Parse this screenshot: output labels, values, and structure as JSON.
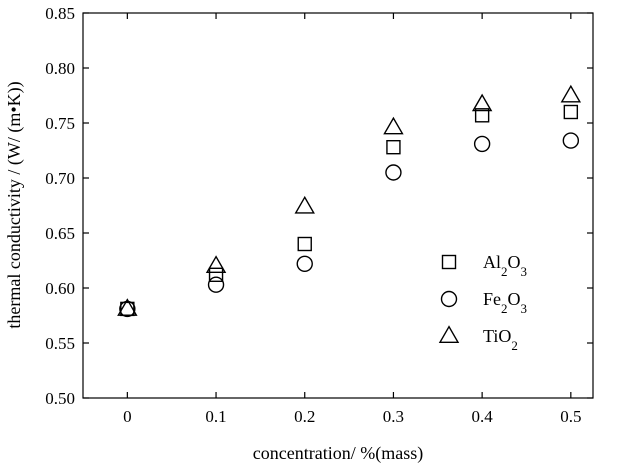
{
  "chart_data": {
    "type": "scatter",
    "title": "",
    "xlabel": "concentration/ %(mass)",
    "ylabel": "thermal conductivity / (W/ (m•K))",
    "xlim": [
      -0.05,
      0.525
    ],
    "ylim": [
      0.5,
      0.85
    ],
    "x_ticks": [
      0,
      0.1,
      0.2,
      0.3,
      0.4,
      0.5
    ],
    "x_tick_labels": [
      "0",
      "0.1",
      "0.2",
      "0.3",
      "0.4",
      "0.5"
    ],
    "y_ticks": [
      0.5,
      0.55,
      0.6,
      0.65,
      0.7,
      0.75,
      0.8,
      0.85
    ],
    "y_tick_labels": [
      "0.50",
      "0.55",
      "0.60",
      "0.65",
      "0.70",
      "0.75",
      "0.80",
      "0.85"
    ],
    "grid": false,
    "legend_position": "right",
    "series": [
      {
        "name": "Al2O3",
        "legend_base": "Al",
        "legend_sub": "2",
        "legend_tail": "O",
        "legend_sub2": "3",
        "marker": "square",
        "x": [
          0,
          0.1,
          0.2,
          0.3,
          0.4,
          0.5
        ],
        "y": [
          0.581,
          0.612,
          0.64,
          0.728,
          0.757,
          0.76
        ]
      },
      {
        "name": "Fe2O3",
        "legend_base": "Fe",
        "legend_sub": "2",
        "legend_tail": "O",
        "legend_sub2": "3",
        "marker": "circle",
        "x": [
          0,
          0.1,
          0.2,
          0.3,
          0.4,
          0.5
        ],
        "y": [
          0.581,
          0.603,
          0.622,
          0.705,
          0.731,
          0.734
        ]
      },
      {
        "name": "TiO2",
        "legend_base": "TiO",
        "legend_sub": "2",
        "legend_tail": "",
        "legend_sub2": "",
        "marker": "triangle",
        "x": [
          0,
          0.1,
          0.2,
          0.3,
          0.4,
          0.5
        ],
        "y": [
          0.581,
          0.62,
          0.674,
          0.746,
          0.767,
          0.775
        ]
      }
    ]
  }
}
